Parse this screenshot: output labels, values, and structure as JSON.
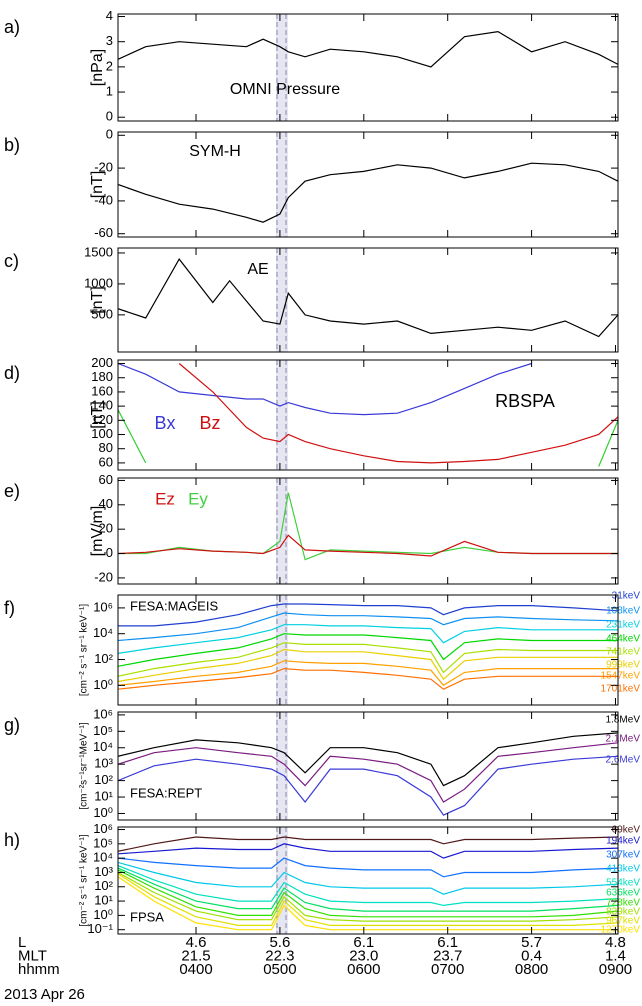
{
  "chart_data": [
    {
      "type": "line",
      "panel": "a)",
      "ylabel": "[nPa]",
      "annotation": "OMNI Pressure",
      "x": [
        3.07,
        3.4,
        3.8,
        4.2,
        4.6,
        4.8,
        5.0,
        5.1,
        5.3,
        5.6,
        6.0,
        6.4,
        6.8,
        7.2,
        7.6,
        8.0,
        8.4,
        8.8,
        9.03
      ],
      "xlim": [
        3.07,
        9.03
      ],
      "ylim": [
        -0.15,
        4.1
      ],
      "yticks": [
        0,
        1,
        2,
        3,
        4
      ],
      "log_scale": false,
      "series": [
        {
          "color": "#000000",
          "values": [
            2.3,
            2.8,
            3.0,
            2.9,
            2.8,
            3.1,
            2.8,
            2.6,
            2.4,
            2.7,
            2.6,
            2.4,
            2.0,
            3.2,
            3.4,
            2.6,
            3.0,
            2.5,
            2.1
          ]
        }
      ]
    },
    {
      "type": "line",
      "panel": "b)",
      "ylabel": "[nT]",
      "annotation": "SYM-H",
      "x": [
        3.07,
        3.4,
        3.8,
        4.2,
        4.6,
        4.8,
        5.0,
        5.1,
        5.3,
        5.6,
        6.0,
        6.4,
        6.8,
        7.2,
        7.6,
        8.0,
        8.4,
        8.8,
        9.03
      ],
      "xlim": [
        3.07,
        9.03
      ],
      "ylim": [
        -62,
        2
      ],
      "yticks": [
        -60,
        -40,
        -20,
        0
      ],
      "log_scale": false,
      "series": [
        {
          "color": "#000000",
          "values": [
            -30,
            -36,
            -42,
            -45,
            -50,
            -53,
            -48,
            -38,
            -28,
            -24,
            -22,
            -18,
            -20,
            -26,
            -22,
            -17,
            -18,
            -22,
            -28
          ]
        }
      ]
    },
    {
      "type": "line",
      "panel": "c)",
      "ylabel": "[nT]",
      "annotation": "AE",
      "x": [
        3.07,
        3.4,
        3.8,
        4.2,
        4.4,
        4.8,
        5.0,
        5.1,
        5.3,
        5.6,
        6.0,
        6.4,
        6.8,
        7.2,
        7.6,
        8.0,
        8.4,
        8.8,
        9.03
      ],
      "xlim": [
        3.07,
        9.03
      ],
      "ylim": [
        -100,
        1580
      ],
      "yticks": [
        500,
        1000,
        1500
      ],
      "log_scale": false,
      "series": [
        {
          "color": "#000000",
          "values": [
            600,
            450,
            1400,
            700,
            1050,
            400,
            350,
            850,
            500,
            400,
            350,
            400,
            200,
            250,
            300,
            250,
            400,
            150,
            500
          ]
        }
      ]
    },
    {
      "type": "line",
      "panel": "d)",
      "ylabel": "[nT]",
      "annotation": "RBSPA",
      "x": [
        3.07,
        3.4,
        3.8,
        4.2,
        4.6,
        4.8,
        5.0,
        5.1,
        5.3,
        5.6,
        6.0,
        6.4,
        6.8,
        7.2,
        7.6,
        8.0,
        8.4,
        8.8,
        9.03
      ],
      "xlim": [
        3.07,
        9.03
      ],
      "ylim": [
        50,
        205
      ],
      "yticks": [
        60,
        80,
        100,
        120,
        140,
        160,
        180,
        200
      ],
      "log_scale": false,
      "series": [
        {
          "name": "Bx",
          "color": "#3a3ad8",
          "values": [
            200,
            185,
            160,
            155,
            150,
            150,
            140,
            145,
            138,
            130,
            128,
            130,
            145,
            165,
            185,
            200,
            null,
            null,
            null
          ]
        },
        {
          "name": "Bz",
          "color": "#d01010",
          "values": [
            null,
            null,
            200,
            160,
            110,
            95,
            90,
            100,
            90,
            80,
            70,
            62,
            60,
            62,
            65,
            75,
            85,
            100,
            125
          ]
        },
        {
          "color": "#30d030",
          "values": [
            135,
            60,
            null,
            null,
            null,
            null,
            null,
            null,
            null,
            null,
            null,
            null,
            null,
            null,
            null,
            null,
            null,
            55,
            120
          ]
        }
      ]
    },
    {
      "type": "line",
      "panel": "e)",
      "ylabel": "[mV/m]",
      "x": [
        3.07,
        3.4,
        3.8,
        4.2,
        4.6,
        4.8,
        5.0,
        5.1,
        5.3,
        5.6,
        6.0,
        6.4,
        6.8,
        7.2,
        7.6,
        8.0,
        8.4,
        8.8,
        9.03
      ],
      "xlim": [
        3.07,
        9.03
      ],
      "ylim": [
        -25,
        62
      ],
      "yticks": [
        -20,
        0,
        20,
        40,
        60
      ],
      "log_scale": false,
      "series": [
        {
          "name": "Ey",
          "color": "#40d040",
          "values": [
            0,
            0,
            5,
            2,
            1,
            0,
            10,
            50,
            -5,
            3,
            2,
            1,
            0,
            5,
            1,
            0,
            0,
            0,
            0
          ]
        },
        {
          "name": "Ez",
          "color": "#d01010",
          "values": [
            0,
            1,
            4,
            2,
            1,
            0,
            5,
            15,
            3,
            2,
            1,
            0,
            -2,
            10,
            1,
            0,
            0,
            0,
            0
          ]
        }
      ]
    },
    {
      "type": "line",
      "panel": "f)",
      "ylabel": "[cm⁻² s⁻¹ sr⁻¹ keV⁻¹]",
      "annotation": "FESA:MAGEIS",
      "x": [
        3.07,
        3.5,
        4.0,
        4.5,
        4.9,
        5.05,
        5.3,
        5.6,
        6.0,
        6.4,
        6.8,
        6.95,
        7.2,
        7.6,
        8.0,
        8.5,
        9.03
      ],
      "xlim": [
        3.07,
        9.03
      ],
      "ylim": [
        0.03,
        10000000
      ],
      "log_scale": true,
      "yticks": [
        {
          "value": 1,
          "label": "10⁰"
        },
        {
          "value": 100,
          "label": "10²"
        },
        {
          "value": 10000,
          "label": "10⁴"
        },
        {
          "value": 1000000,
          "label": "10⁶"
        }
      ],
      "series": [
        {
          "name": "31keV",
          "color": "#1f3fd0",
          "values": [
            40000,
            40000,
            80000,
            300000,
            1500000,
            2000000,
            2000000,
            1800000,
            1500000,
            1500000,
            1000000,
            300000,
            1000000,
            1500000,
            1500000,
            1000000,
            600000
          ]
        },
        {
          "name": "108keV",
          "color": "#1090f0",
          "values": [
            3000,
            5000,
            10000,
            30000,
            200000,
            400000,
            300000,
            250000,
            250000,
            200000,
            150000,
            50000,
            150000,
            200000,
            150000,
            120000,
            100000
          ]
        },
        {
          "name": "231keV",
          "color": "#00d0e0",
          "values": [
            300,
            800,
            2000,
            5000,
            20000,
            50000,
            50000,
            40000,
            40000,
            30000,
            25000,
            2000,
            15000,
            30000,
            20000,
            20000,
            20000
          ]
        },
        {
          "name": "464keV",
          "color": "#00d800",
          "values": [
            30,
            100,
            300,
            800,
            4000,
            10000,
            8000,
            8000,
            8000,
            5000,
            3000,
            100,
            2000,
            4000,
            3000,
            3000,
            3000
          ]
        },
        {
          "name": "741keV",
          "color": "#a8e000",
          "values": [
            5,
            20,
            60,
            150,
            800,
            2000,
            1500,
            1500,
            1500,
            800,
            400,
            10,
            300,
            600,
            500,
            500,
            500
          ]
        },
        {
          "name": "999keV",
          "color": "#e8d000",
          "values": [
            2,
            6,
            20,
            50,
            200,
            600,
            400,
            400,
            400,
            200,
            100,
            3,
            80,
            150,
            150,
            150,
            150
          ]
        },
        {
          "name": "1547keV",
          "color": "#ffa000",
          "values": [
            1,
            2,
            5,
            10,
            30,
            80,
            60,
            50,
            50,
            30,
            15,
            1,
            10,
            20,
            20,
            20,
            20
          ]
        },
        {
          "name": "1701keV",
          "color": "#ff7000",
          "values": [
            0.5,
            1,
            2,
            4,
            8,
            20,
            15,
            15,
            10,
            6,
            3,
            0.5,
            3,
            5,
            5,
            5,
            5
          ]
        }
      ]
    },
    {
      "type": "line",
      "panel": "g)",
      "ylabel": "[cm⁻²s⁻¹sr⁻¹MeV⁻¹]",
      "annotation": "FESA:REPT",
      "x": [
        3.07,
        3.5,
        4.0,
        4.5,
        4.9,
        5.05,
        5.3,
        5.6,
        6.0,
        6.4,
        6.8,
        6.95,
        7.2,
        7.6,
        8.0,
        8.5,
        9.03
      ],
      "xlim": [
        3.07,
        9.03
      ],
      "ylim": [
        0.4,
        1500000
      ],
      "log_scale": true,
      "yticks": [
        {
          "value": 1,
          "label": "10⁰"
        },
        {
          "value": 10,
          "label": "10¹"
        },
        {
          "value": 100,
          "label": "10²"
        },
        {
          "value": 1000,
          "label": "10³"
        },
        {
          "value": 10000,
          "label": "10⁴"
        },
        {
          "value": 100000,
          "label": "10⁵"
        },
        {
          "value": 1000000,
          "label": "10⁶"
        }
      ],
      "series": [
        {
          "name": "1.8MeV",
          "color": "#000000",
          "values": [
            3000,
            10000,
            30000,
            20000,
            10000,
            5000,
            300,
            10000,
            10000,
            5000,
            1000,
            50,
            200,
            10000,
            20000,
            50000,
            80000
          ]
        },
        {
          "name": "2.1MeV",
          "color": "#7a1a80",
          "values": [
            1000,
            5000,
            10000,
            5000,
            3000,
            1000,
            50,
            3000,
            2000,
            1000,
            100,
            5,
            30,
            3000,
            5000,
            10000,
            20000
          ]
        },
        {
          "name": "2.6MeV",
          "color": "#3a3ad8",
          "values": [
            100,
            800,
            2000,
            1000,
            500,
            200,
            5,
            500,
            500,
            200,
            10,
            0.8,
            3,
            500,
            1000,
            2000,
            3000
          ]
        }
      ]
    },
    {
      "type": "line",
      "panel": "h)",
      "ylabel": "[cm⁻² s⁻¹ sr⁻¹ keV⁻¹]",
      "annotation": "FPSA",
      "x": [
        3.07,
        3.5,
        4.0,
        4.5,
        4.9,
        5.05,
        5.3,
        5.6,
        6.0,
        6.4,
        6.8,
        6.95,
        7.2,
        7.6,
        8.0,
        8.5,
        9.03
      ],
      "xlim": [
        3.07,
        9.03
      ],
      "ylim": [
        0.05,
        1500000
      ],
      "log_scale": true,
      "yticks": [
        {
          "value": 0.1,
          "label": "10⁻¹"
        },
        {
          "value": 1,
          "label": "10⁰"
        },
        {
          "value": 10,
          "label": "10¹"
        },
        {
          "value": 100,
          "label": "10²"
        },
        {
          "value": 1000,
          "label": "10³"
        },
        {
          "value": 10000,
          "label": "10⁴"
        },
        {
          "value": 100000,
          "label": "10⁵"
        },
        {
          "value": 1000000,
          "label": "10⁶"
        }
      ],
      "xticks": [
        {
          "value": 4,
          "label": "0400"
        },
        {
          "value": 5,
          "label": "0500"
        },
        {
          "value": 6,
          "label": "0600"
        },
        {
          "value": 7,
          "label": "0700"
        },
        {
          "value": 8,
          "label": "0800"
        },
        {
          "value": 9,
          "label": "0900"
        }
      ],
      "xlabel": "hhmm",
      "xtick_rows": [
        {
          "title": "L",
          "labels": [
            "4.6",
            "5.6",
            "6.1",
            "6.1",
            "5.7",
            "4.8"
          ]
        },
        {
          "title": "MLT",
          "labels": [
            "21.5",
            "22.3",
            "23.0",
            "23.7",
            "0.4",
            "1.4"
          ]
        }
      ],
      "date": "2013 Apr 26",
      "series": [
        {
          "name": "69keV",
          "color": "#501818",
          "values": [
            30000,
            100000,
            300000,
            200000,
            200000,
            300000,
            200000,
            200000,
            200000,
            200000,
            200000,
            100000,
            200000,
            200000,
            200000,
            250000,
            300000
          ]
        },
        {
          "name": "194keV",
          "color": "#1818d0",
          "values": [
            20000,
            30000,
            50000,
            40000,
            40000,
            100000,
            50000,
            30000,
            30000,
            30000,
            30000,
            10000,
            30000,
            30000,
            30000,
            40000,
            50000
          ]
        },
        {
          "name": "307keV",
          "color": "#1070ff",
          "values": [
            10000,
            5000,
            3000,
            2000,
            2000,
            10000,
            3000,
            2000,
            1500,
            1500,
            1500,
            500,
            1000,
            1000,
            1000,
            1500,
            2000
          ]
        },
        {
          "name": "413keV",
          "color": "#00c8e8",
          "values": [
            5000,
            1000,
            200,
            100,
            100,
            1000,
            200,
            100,
            80,
            80,
            80,
            30,
            80,
            80,
            80,
            100,
            150
          ]
        },
        {
          "name": "554keV",
          "color": "#00e0c0",
          "values": [
            3000,
            300,
            30,
            10,
            10,
            200,
            30,
            10,
            8,
            8,
            8,
            5,
            8,
            8,
            8,
            10,
            15
          ]
        },
        {
          "name": "636keV",
          "color": "#00e060",
          "values": [
            2000,
            150,
            10,
            3,
            3,
            80,
            8,
            3,
            2,
            2,
            2,
            2,
            2,
            2,
            2,
            3,
            5
          ]
        },
        {
          "name": "728keV",
          "color": "#30e000",
          "values": [
            1500,
            80,
            4,
            1,
            1,
            40,
            3,
            1,
            0.8,
            0.8,
            0.8,
            0.8,
            0.8,
            0.8,
            0.8,
            1,
            2
          ]
        },
        {
          "name": "839keV",
          "color": "#a0e000",
          "values": [
            1000,
            40,
            2,
            0.5,
            0.5,
            20,
            1,
            0.5,
            0.4,
            0.4,
            0.4,
            0.4,
            0.4,
            0.4,
            0.4,
            0.5,
            0.8
          ]
        },
        {
          "name": "967keV",
          "color": "#e0e000",
          "values": [
            800,
            20,
            0.8,
            0.2,
            0.2,
            10,
            0.5,
            0.2,
            0.2,
            0.2,
            0.2,
            0.2,
            0.2,
            0.2,
            0.2,
            0.2,
            0.3
          ]
        },
        {
          "name": "1270keV",
          "color": "#ffe000",
          "values": [
            500,
            10,
            0.3,
            0.1,
            0.1,
            5,
            0.2,
            0.1,
            0.1,
            0.1,
            0.1,
            0.1,
            0.1,
            0.1,
            0.1,
            0.1,
            0.1
          ]
        }
      ]
    }
  ]
}
